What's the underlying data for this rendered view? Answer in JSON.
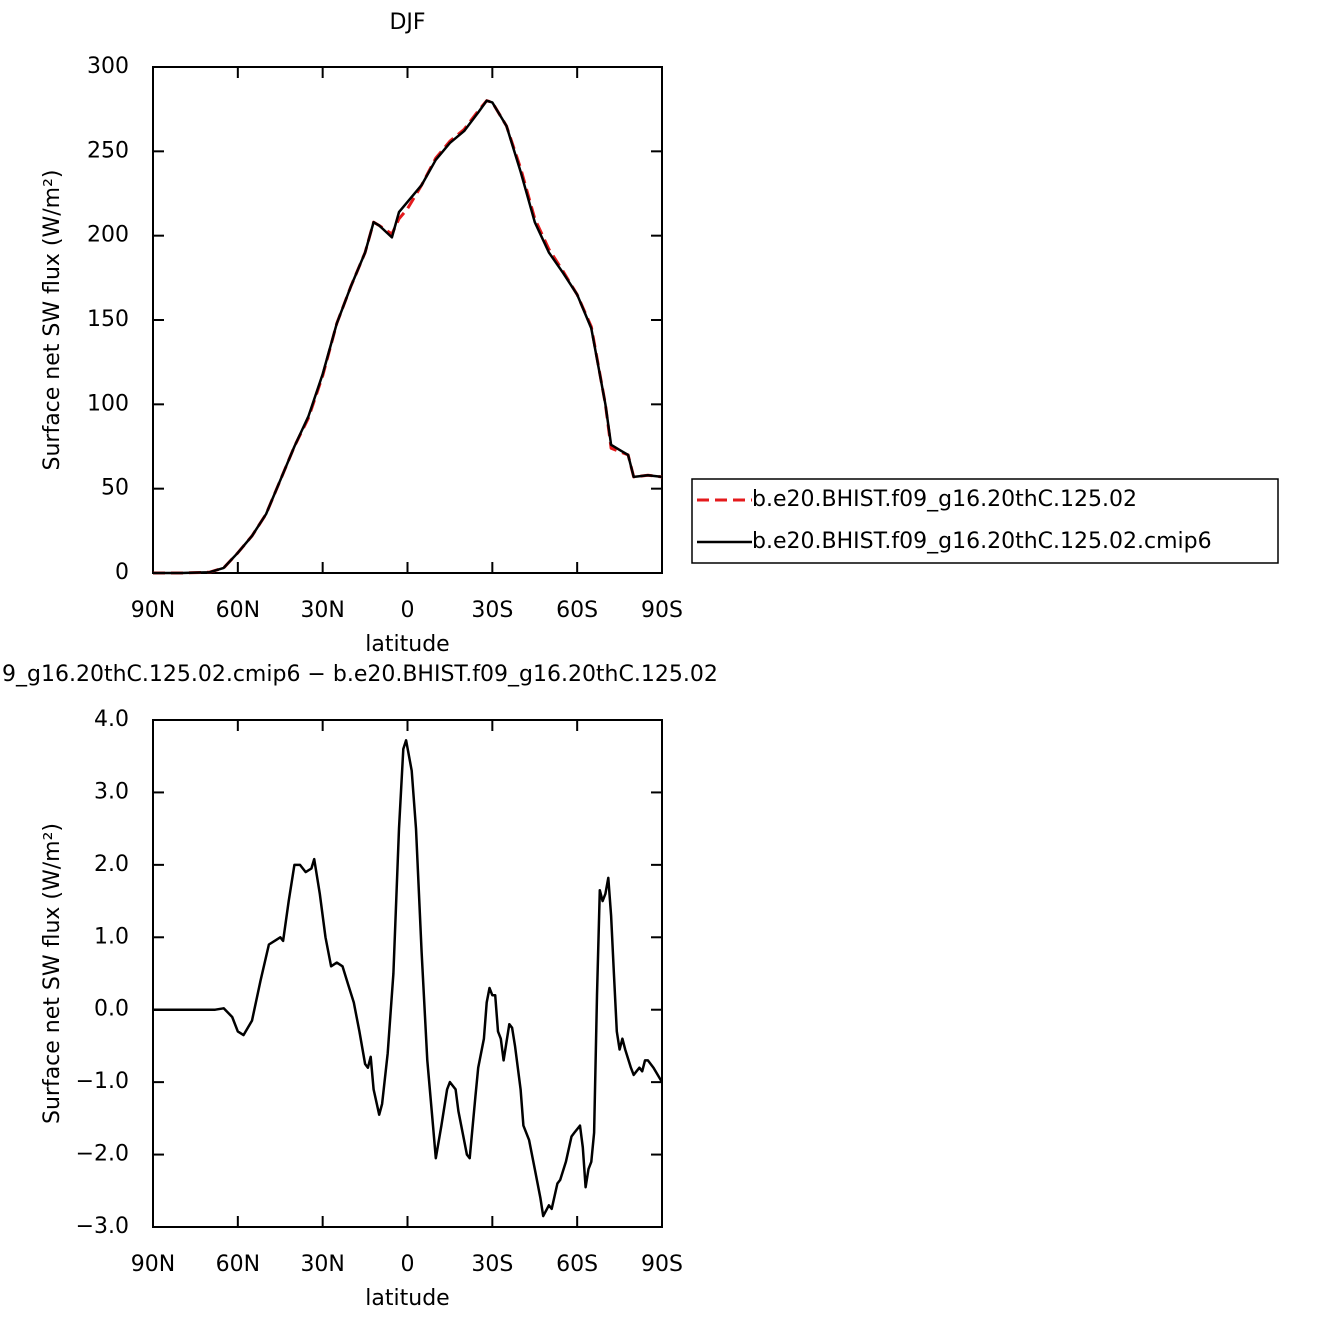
{
  "chart_data": [
    {
      "type": "line",
      "title": "DJF",
      "xlabel": "latitude",
      "ylabel": "Surface net SW flux (W/m²)",
      "x": [
        90,
        80,
        70,
        65,
        60,
        55,
        50,
        45,
        40,
        35,
        30,
        25,
        20,
        15,
        12,
        10,
        5.5,
        3,
        0,
        -5,
        -10,
        -15,
        -20,
        -25,
        -28,
        -30,
        -35,
        -40,
        -45,
        -50,
        -55,
        -60,
        -65,
        -70,
        -72,
        -75,
        -78,
        -80,
        -85,
        -90
      ],
      "series": [
        {
          "name": "b.e20.BHIST.f09_g16.20thC.125.02",
          "color": "#e41a1c",
          "dash": true,
          "values": [
            0,
            0,
            0.5,
            3,
            12,
            22,
            35,
            55,
            75,
            92,
            117,
            148,
            170,
            190,
            208,
            206,
            201,
            210,
            216,
            230,
            246,
            256,
            263,
            274,
            280,
            279,
            265,
            240,
            210,
            192,
            179,
            165,
            146,
            100,
            74,
            72,
            70,
            57,
            58,
            57
          ]
        },
        {
          "name": "b.e20.BHIST.f09_g16.20thC.125.02.cmip6",
          "color": "#000000",
          "dash": false,
          "values": [
            0,
            0,
            0.5,
            3,
            12,
            22,
            35,
            55,
            75,
            93,
            118,
            148,
            170,
            190,
            208,
            206,
            199,
            214,
            220,
            230,
            245,
            255,
            262,
            273,
            280,
            279,
            265,
            238,
            208,
            190,
            178,
            165,
            145,
            100,
            76,
            73,
            70,
            57,
            58,
            57
          ]
        }
      ],
      "xlim": [
        90,
        -90
      ],
      "xticks": [
        {
          "value": 90,
          "label": "90N"
        },
        {
          "value": 60,
          "label": "60N"
        },
        {
          "value": 30,
          "label": "30N"
        },
        0,
        {
          "value": -30,
          "label": "30S"
        },
        {
          "value": -60,
          "label": "60S"
        },
        {
          "value": -90,
          "label": "90S"
        }
      ],
      "ylim": [
        0,
        300
      ],
      "yticks": [
        0,
        50,
        100,
        150,
        200,
        250,
        300
      ],
      "legend": "right"
    },
    {
      "type": "line",
      "title": "9_g16.20thC.125.02.cmip6 − b.e20.BHIST.f09_g16.20thC.125.02",
      "xlabel": "latitude",
      "ylabel": "Surface net SW flux (W/m²)",
      "x": [
        90,
        80,
        70,
        68,
        65,
        62,
        60,
        58,
        55,
        52,
        49,
        47,
        45,
        44,
        42,
        40,
        38,
        36,
        34,
        33,
        31,
        29,
        27,
        25,
        23,
        21,
        19,
        17,
        15,
        14,
        13,
        12,
        10,
        9,
        7,
        5,
        3,
        1.5,
        0.5,
        -1.5,
        -3,
        -5,
        -7,
        -9,
        -10,
        -12,
        -14,
        -15,
        -17,
        -18,
        -21,
        -22,
        -24,
        -25,
        -27,
        -28,
        -29,
        -30,
        -31,
        -32,
        -33,
        -34,
        -36,
        -37,
        -38,
        -40,
        -41,
        -43,
        -45,
        -47,
        -48,
        -50,
        -51,
        -53,
        -54,
        -56,
        -58,
        -59,
        -61,
        -62,
        -63,
        -64,
        -65,
        -66,
        -67,
        -68,
        -69,
        -70,
        -71,
        -72,
        -73,
        -74,
        -75,
        -76,
        -77,
        -79,
        -80,
        -81,
        -82,
        -83,
        -84,
        -85,
        -87,
        -90
      ],
      "series": [
        {
          "color": "#000000",
          "dash": false,
          "values": [
            0,
            0,
            0,
            0,
            0.02,
            -0.1,
            -0.3,
            -0.35,
            -0.15,
            0.4,
            0.9,
            0.95,
            1.0,
            0.95,
            1.5,
            2.0,
            2.0,
            1.9,
            1.95,
            2.08,
            1.6,
            1.0,
            0.6,
            0.65,
            0.6,
            0.35,
            0.1,
            -0.3,
            -0.75,
            -0.8,
            -0.65,
            -1.1,
            -1.45,
            -1.3,
            -0.6,
            0.5,
            2.5,
            3.6,
            3.72,
            3.3,
            2.5,
            0.8,
            -0.7,
            -1.6,
            -2.05,
            -1.6,
            -1.1,
            -1.0,
            -1.1,
            -1.4,
            -2.0,
            -2.05,
            -1.2,
            -0.8,
            -0.4,
            0.1,
            0.3,
            0.2,
            0.2,
            -0.3,
            -0.4,
            -0.7,
            -0.2,
            -0.25,
            -0.5,
            -1.1,
            -1.6,
            -1.8,
            -2.2,
            -2.6,
            -2.85,
            -2.7,
            -2.75,
            -2.4,
            -2.35,
            -2.1,
            -1.75,
            -1.7,
            -1.6,
            -1.9,
            -2.45,
            -2.2,
            -2.1,
            -1.7,
            0.2,
            1.65,
            1.5,
            1.6,
            1.82,
            1.3,
            0.5,
            -0.3,
            -0.55,
            -0.4,
            -0.55,
            -0.8,
            -0.9,
            -0.85,
            -0.8,
            -0.85,
            -0.7,
            -0.7,
            -0.8,
            -1.0
          ]
        }
      ],
      "xlim": [
        90,
        -90
      ],
      "xticks": [
        {
          "value": 90,
          "label": "90N"
        },
        {
          "value": 60,
          "label": "60N"
        },
        {
          "value": 30,
          "label": "30N"
        },
        0,
        {
          "value": -30,
          "label": "30S"
        },
        {
          "value": -60,
          "label": "60S"
        },
        {
          "value": -90,
          "label": "90S"
        }
      ],
      "ylim": [
        -3,
        4
      ],
      "yticks": [
        {
          "value": -3,
          "label": "−3.0"
        },
        {
          "value": -2,
          "label": "−2.0"
        },
        {
          "value": -1,
          "label": "−1.0"
        },
        {
          "value": 0,
          "label": "0.0"
        },
        {
          "value": 1,
          "label": "1.0"
        },
        {
          "value": 2,
          "label": "2.0"
        },
        {
          "value": 3,
          "label": "3.0"
        },
        {
          "value": 4,
          "label": "4.0"
        }
      ]
    }
  ]
}
